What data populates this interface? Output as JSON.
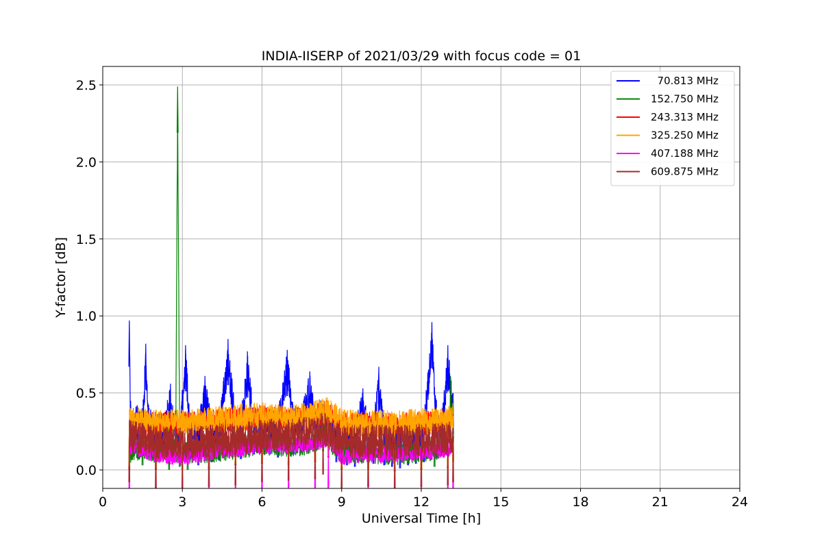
{
  "chart_data": {
    "type": "line",
    "title": "INDIA-IISERP of 2021/03/29 with focus code = 01",
    "xlabel": "Universal Time [h]",
    "ylabel": "Y-factor [dB]",
    "xlim": [
      0,
      24
    ],
    "ylim": [
      -0.12,
      2.62
    ],
    "xticks": [
      0,
      3,
      6,
      9,
      12,
      15,
      18,
      21,
      24
    ],
    "xtick_labels": [
      "0",
      "3",
      "6",
      "9",
      "12",
      "15",
      "18",
      "21",
      "24"
    ],
    "yticks": [
      0.0,
      0.5,
      1.0,
      1.5,
      2.0,
      2.5
    ],
    "ytick_labels": [
      "0.0",
      "0.5",
      "1.0",
      "1.5",
      "2.0",
      "2.5"
    ],
    "grid": true,
    "legend_position": "top-right",
    "series": [
      {
        "name": "  70.813 MHz",
        "color": "#0000ff",
        "x": [
          1.0,
          1.05,
          1.15,
          1.3,
          1.5,
          1.62,
          1.75,
          2.0,
          2.3,
          2.55,
          2.75,
          2.9,
          3.12,
          3.3,
          3.6,
          3.85,
          4.1,
          4.4,
          4.72,
          5.0,
          5.2,
          5.45,
          5.7,
          6.0,
          6.3,
          6.6,
          6.95,
          7.2,
          7.5,
          7.8,
          8.0,
          8.2,
          8.5,
          8.8,
          9.0,
          9.2,
          9.5,
          9.8,
          10.0,
          10.2,
          10.4,
          10.6,
          10.9,
          11.2,
          11.5,
          11.8,
          12.1,
          12.4,
          12.6,
          12.8,
          13.0,
          13.2
        ],
        "y": [
          0.97,
          0.45,
          0.4,
          0.42,
          0.4,
          0.82,
          0.4,
          0.38,
          0.37,
          0.56,
          0.38,
          0.35,
          0.81,
          0.37,
          0.33,
          0.61,
          0.35,
          0.36,
          0.85,
          0.38,
          0.37,
          0.77,
          0.4,
          0.42,
          0.4,
          0.38,
          0.78,
          0.4,
          0.41,
          0.64,
          0.4,
          0.45,
          0.42,
          0.35,
          0.34,
          0.33,
          0.32,
          0.53,
          0.33,
          0.34,
          0.67,
          0.33,
          0.32,
          0.31,
          0.33,
          0.34,
          0.35,
          0.96,
          0.38,
          0.4,
          0.81,
          0.5
        ]
      },
      {
        "name": "152.750 MHz",
        "color": "#008000",
        "x": [
          1.0,
          1.5,
          2.0,
          2.5,
          2.75,
          2.82,
          2.9,
          3.2,
          4.0,
          5.0,
          6.0,
          7.0,
          8.0,
          8.3,
          9.0,
          10.0,
          11.0,
          12.0,
          12.5,
          13.0,
          13.1,
          13.2
        ],
        "y": [
          0.3,
          0.33,
          0.3,
          0.3,
          0.35,
          2.49,
          0.32,
          0.3,
          0.3,
          0.33,
          0.35,
          0.34,
          0.36,
          0.42,
          0.3,
          0.3,
          0.29,
          0.3,
          0.32,
          0.35,
          0.61,
          0.48
        ]
      },
      {
        "name": "243.313 MHz",
        "color": "#ff0000",
        "x": [
          1.0,
          2.0,
          3.0,
          4.0,
          5.0,
          6.0,
          7.0,
          8.0,
          8.5,
          9.0,
          10.0,
          11.0,
          12.0,
          13.0,
          13.2
        ],
        "y": [
          0.3,
          0.3,
          0.3,
          0.31,
          0.33,
          0.34,
          0.33,
          0.35,
          0.38,
          0.3,
          0.3,
          0.29,
          0.3,
          0.31,
          0.36
        ]
      },
      {
        "name": "325.250 MHz",
        "color": "#ffa500",
        "x": [
          1.0,
          2.0,
          3.0,
          4.0,
          5.0,
          6.0,
          7.0,
          8.0,
          8.5,
          9.0,
          10.0,
          11.0,
          12.0,
          13.0,
          13.2
        ],
        "y": [
          0.32,
          0.31,
          0.3,
          0.32,
          0.34,
          0.35,
          0.33,
          0.36,
          0.39,
          0.31,
          0.3,
          0.3,
          0.31,
          0.32,
          0.35
        ]
      },
      {
        "name": "407.188 MHz",
        "color": "#ff00ff",
        "x": [
          1.0,
          2.0,
          3.0,
          4.0,
          5.0,
          6.0,
          7.0,
          8.0,
          8.5,
          9.0,
          10.0,
          11.0,
          12.0,
          13.0,
          13.2
        ],
        "y": [
          0.1,
          0.05,
          0.02,
          0.06,
          0.08,
          0.1,
          0.1,
          0.12,
          0.15,
          0.03,
          0.05,
          0.04,
          0.06,
          0.08,
          0.1
        ]
      },
      {
        "name": "609.875 MHz",
        "color": "#a52a2a",
        "x": [
          1.0,
          2.0,
          3.0,
          4.0,
          5.0,
          6.0,
          7.0,
          8.0,
          8.3,
          9.0,
          10.0,
          11.0,
          12.0,
          13.0,
          13.2
        ],
        "y": [
          0.22,
          0.18,
          0.17,
          0.19,
          0.2,
          0.22,
          0.23,
          0.24,
          0.27,
          0.18,
          0.19,
          0.18,
          0.19,
          0.2,
          0.22
        ]
      }
    ]
  }
}
